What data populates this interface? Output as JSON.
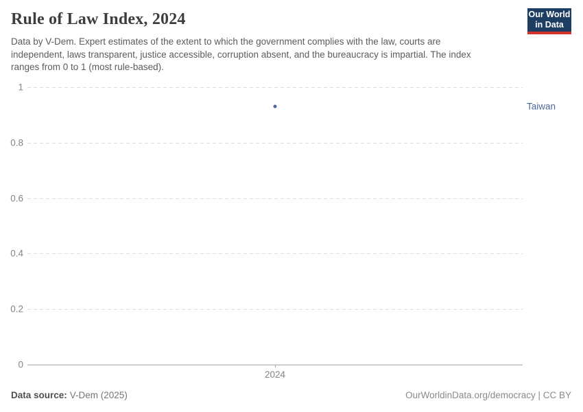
{
  "header": {
    "title": "Rule of Law Index, 2024",
    "subtitle": "Data by V-Dem. Expert estimates of the extent to which the government complies with the law, courts are independent, laws transparent, justice accessible, corruption absent, and the bureaucracy is impartial. The index ranges from 0 to 1 (most rule-based).",
    "logo": {
      "line1": "Our World",
      "line2": "in Data",
      "bg_color": "#1d3d63",
      "accent_color": "#d0342c"
    }
  },
  "chart_data": {
    "type": "scatter",
    "title": "Rule of Law Index, 2024",
    "x": [
      2024
    ],
    "x_tick_labels": [
      "2024"
    ],
    "series": [
      {
        "name": "Taiwan",
        "values": [
          0.93
        ],
        "color": "#4c6a9c"
      }
    ],
    "ylim": [
      0,
      1
    ],
    "yticks": [
      0,
      0.2,
      0.4,
      0.6,
      0.8,
      1
    ],
    "ytick_labels": [
      "0",
      "0.2",
      "0.4",
      "0.6",
      "0.8",
      "1"
    ],
    "grid": "horizontal-dashed",
    "legend_position": "right-of-point",
    "axis_color": "#a3a3a3",
    "gridline_color": "#dcdcdc",
    "tick_label_color": "#848484"
  },
  "footer": {
    "source_label": "Data source:",
    "source_value": "V-Dem (2025)",
    "right_text": "OurWorldinData.org/democracy | CC BY"
  }
}
